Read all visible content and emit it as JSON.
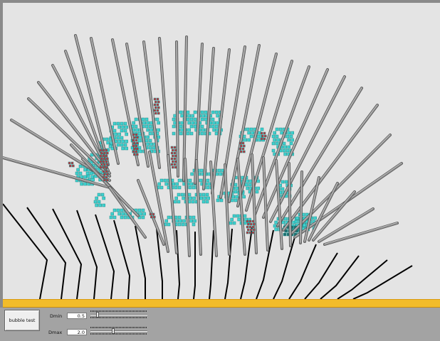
{
  "viewport": {
    "background": "#e4e4e4",
    "content": "3D scene: gray rods, black rod bases, cyan voxel clusters, red voxel clusters"
  },
  "accent_color": "#f2bc2a",
  "controls": {
    "bubble_test_label": "bubble test",
    "dmin": {
      "label": "Dmin",
      "value": "0.5",
      "slider_fraction": 0.1
    },
    "dmax": {
      "label": "Dmax",
      "value": "2.0",
      "slider_fraction": 0.4
    }
  },
  "colors": {
    "rod": "#8e8e8e",
    "rod_base": "#000000",
    "cyan_voxel": "#3fd2d0",
    "red_voxel": "#c0333a"
  }
}
